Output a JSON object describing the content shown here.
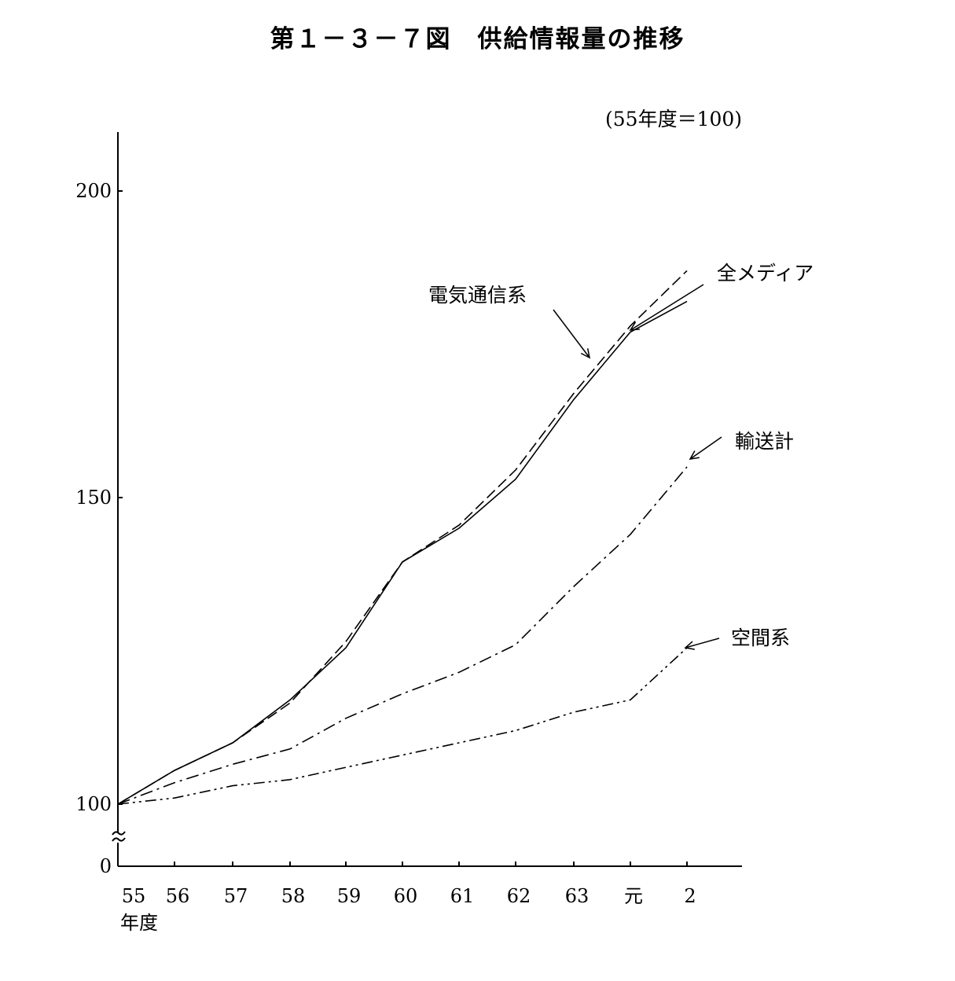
{
  "title": "第１－３－７図　供給情報量の推移",
  "note": "(55年度＝100)",
  "chart_data": {
    "type": "line",
    "xlabel": "年度",
    "categories": [
      "55",
      "56",
      "57",
      "58",
      "59",
      "60",
      "61",
      "62",
      "63",
      "元",
      "2"
    ],
    "y_ticks": [
      "200",
      "150",
      "100",
      "0"
    ],
    "ylim": [
      100,
      210
    ],
    "axis_break": true,
    "series": [
      {
        "name": "全メディア",
        "dash": "solid",
        "values": [
          100,
          105.5,
          110,
          117,
          125.5,
          139.5,
          145,
          153,
          166,
          177,
          182
        ]
      },
      {
        "name": "電気通信系",
        "dash": "dashed",
        "values": [
          100,
          105.5,
          110,
          116.5,
          126.5,
          139.5,
          145.5,
          154.5,
          167,
          178,
          187
        ]
      },
      {
        "name": "輸送計",
        "dash": "dashdot",
        "values": [
          100,
          103.5,
          106.5,
          109,
          114,
          118,
          121.5,
          126,
          135.5,
          144,
          155
        ]
      },
      {
        "name": "空間系",
        "dash": "dashdotdot",
        "values": [
          100,
          101,
          103,
          104,
          106,
          108,
          110,
          112,
          115,
          117,
          125.5
        ]
      }
    ]
  }
}
